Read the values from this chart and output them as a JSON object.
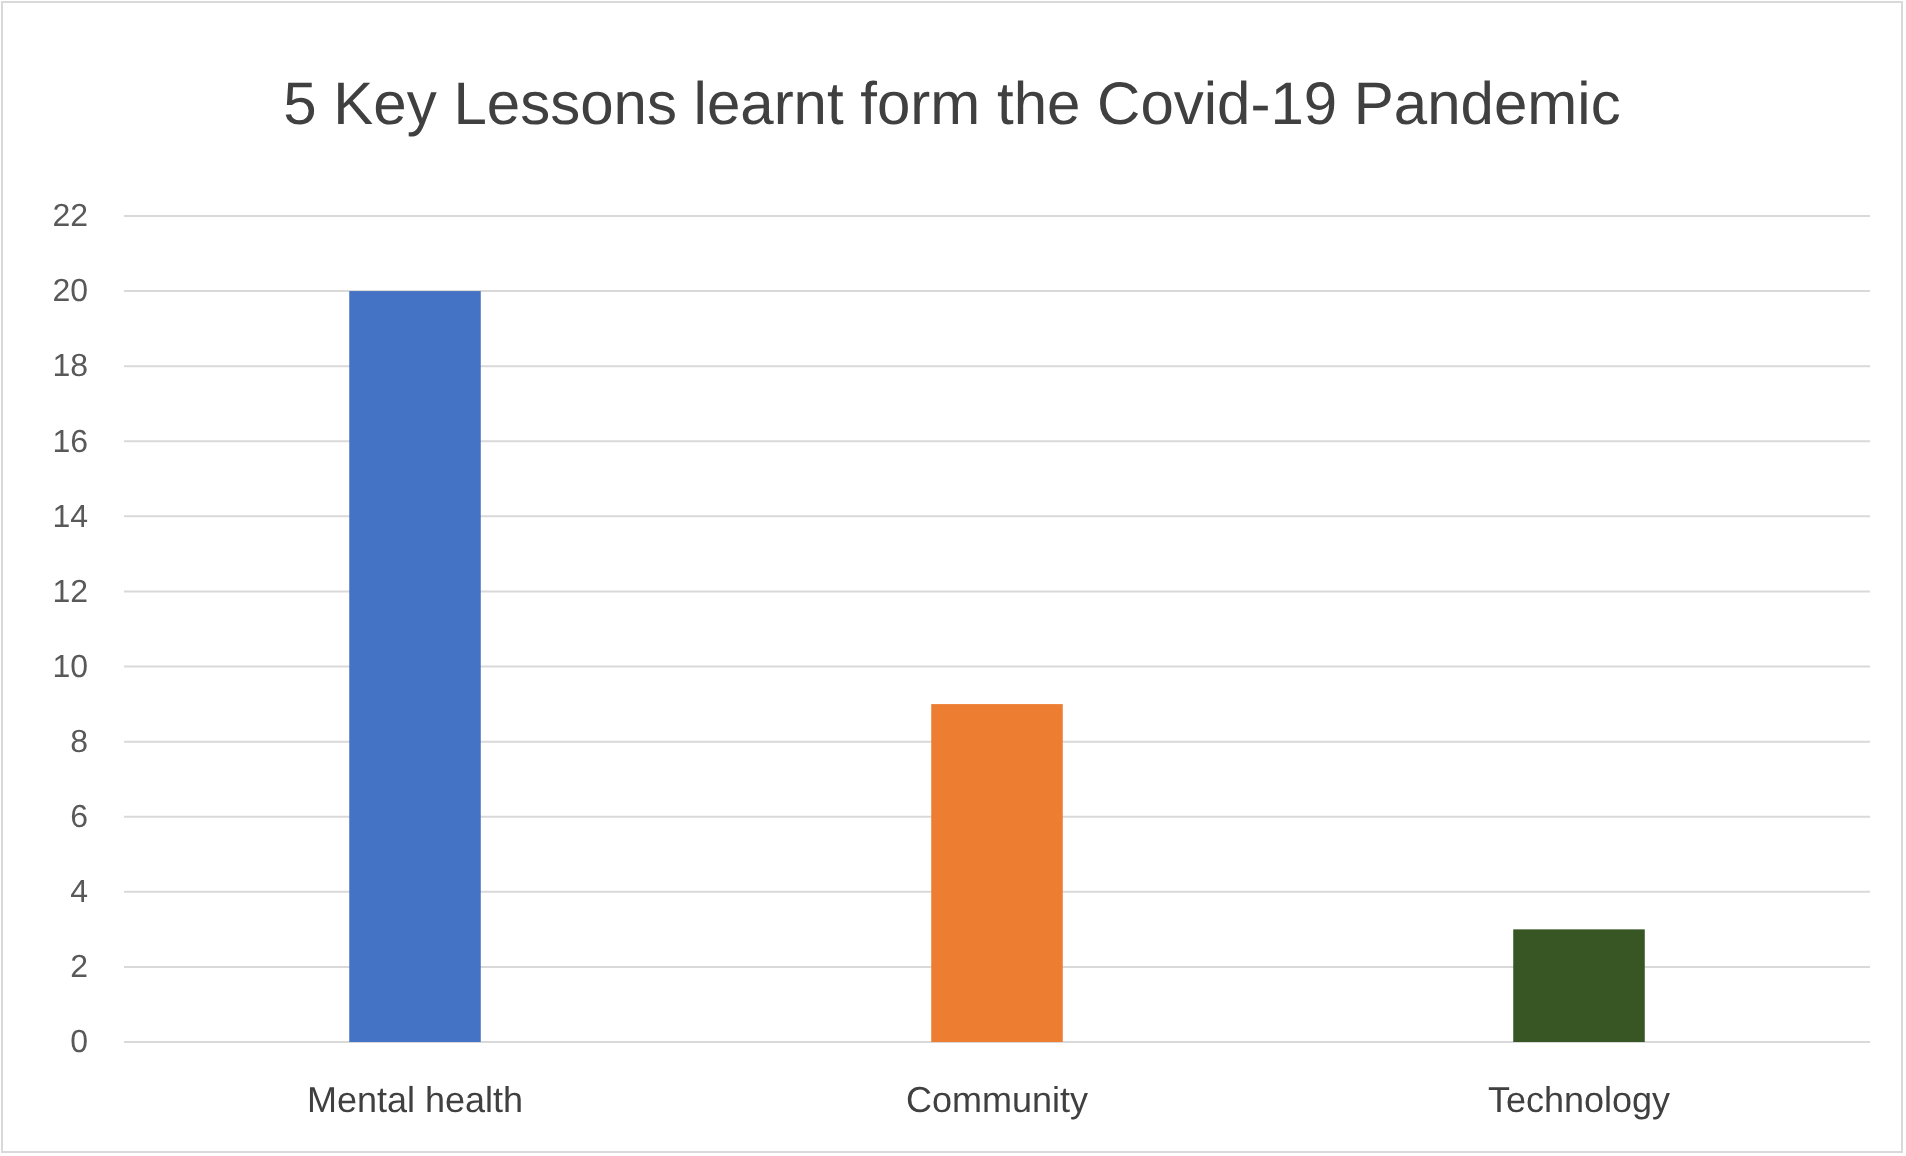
{
  "chart_data": {
    "type": "bar",
    "title": "5 Key Lessons learnt form the Covid-19 Pandemic",
    "categories": [
      "Mental health",
      "Community",
      "Technology"
    ],
    "values": [
      20,
      9,
      3
    ],
    "colors": [
      "#4472c4",
      "#ed7d31",
      "#375623"
    ],
    "ylim": [
      0,
      22
    ],
    "yticks": [
      0,
      2,
      4,
      6,
      8,
      10,
      12,
      14,
      16,
      18,
      20,
      22
    ],
    "grid": "y"
  }
}
